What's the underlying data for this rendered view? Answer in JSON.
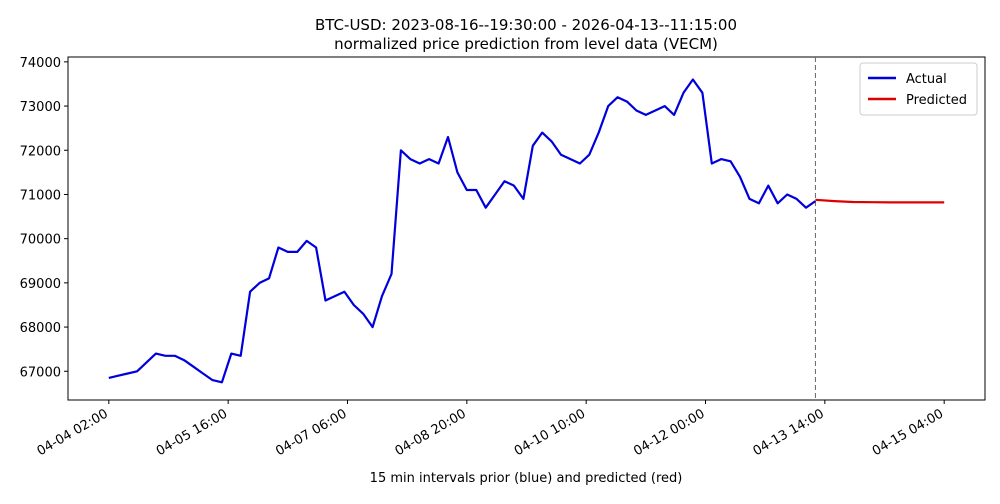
{
  "chart_data": {
    "type": "line",
    "title": "BTC-USD: 2023-08-16--19:30:00 - 2026-04-13--11:15:00",
    "subtitle": "normalized price prediction from level data (VECM)",
    "x_label": "15 min intervals prior (blue) and predicted (red)",
    "xlim": [
      "04-03 13:00",
      "04-15 17:00"
    ],
    "xticks": [
      "04-04 02:00",
      "04-05 16:00",
      "04-07 06:00",
      "04-08 20:00",
      "04-10 10:00",
      "04-12 00:00",
      "04-13 14:00",
      "04-15 04:00"
    ],
    "ylim": [
      66350,
      74110
    ],
    "yticks": [
      67000,
      68000,
      69000,
      70000,
      71000,
      72000,
      73000,
      74000
    ],
    "legend": "upper right",
    "series": [
      {
        "name": "Actual",
        "color": "#0000dd",
        "x": [
          "04-04 02:00",
          "04-04 05:00",
          "04-04 08:00",
          "04-04 11:00",
          "04-04 14:00",
          "04-04 17:00",
          "04-04 20:00",
          "04-04 23:00",
          "04-05 02:00",
          "04-05 05:00",
          "04-05 08:00",
          "04-05 11:00",
          "04-05 14:00",
          "04-05 17:00",
          "04-05 20:00",
          "04-05 23:00",
          "04-06 02:00",
          "04-06 05:00",
          "04-06 08:00",
          "04-06 11:00",
          "04-06 14:00",
          "04-06 17:00",
          "04-06 20:00",
          "04-06 23:00",
          "04-07 02:00",
          "04-07 05:00",
          "04-07 08:00",
          "04-07 11:00",
          "04-07 14:00",
          "04-07 17:00",
          "04-07 20:00",
          "04-07 23:00",
          "04-08 02:00",
          "04-08 05:00",
          "04-08 08:00",
          "04-08 11:00",
          "04-08 14:00",
          "04-08 17:00",
          "04-08 20:00",
          "04-08 23:00",
          "04-09 02:00",
          "04-09 05:00",
          "04-09 08:00",
          "04-09 11:00",
          "04-09 14:00",
          "04-09 17:00",
          "04-09 20:00",
          "04-09 23:00",
          "04-10 02:00",
          "04-10 05:00",
          "04-10 08:00",
          "04-10 11:00",
          "04-10 14:00",
          "04-10 17:00",
          "04-10 20:00",
          "04-10 23:00",
          "04-11 02:00",
          "04-11 05:00",
          "04-11 08:00",
          "04-11 11:00",
          "04-11 14:00",
          "04-11 17:00",
          "04-11 20:00",
          "04-11 23:00",
          "04-12 02:00",
          "04-12 05:00",
          "04-12 08:00",
          "04-12 11:00",
          "04-12 14:00",
          "04-12 17:00",
          "04-12 20:00",
          "04-12 23:00",
          "04-13 02:00",
          "04-13 05:00",
          "04-13 08:00",
          "04-13 11:00"
        ],
        "values": [
          66850,
          66900,
          66950,
          67000,
          67200,
          67400,
          67350,
          67350,
          67250,
          67100,
          66950,
          66800,
          66750,
          67400,
          67350,
          68800,
          69000,
          69100,
          69800,
          69700,
          69700,
          69950,
          69800,
          68600,
          68700,
          68800,
          68500,
          68300,
          68000,
          68700,
          69200,
          72000,
          71800,
          71700,
          71800,
          71700,
          72300,
          71500,
          71100,
          71100,
          70700,
          71000,
          71300,
          71200,
          70900,
          72100,
          72400,
          72200,
          71900,
          71800,
          71700,
          71900,
          72400,
          73000,
          73200,
          73100,
          72900,
          72800,
          72900,
          73000,
          72800,
          73300,
          73600,
          73300,
          71700,
          71800,
          71750,
          71400,
          70900,
          70800,
          71200,
          70800,
          71000,
          70900,
          70700,
          70850
        ]
      },
      {
        "name": "Predicted",
        "color": "#dd0000",
        "x": [
          "04-13 11:00",
          "04-13 17:00",
          "04-13 23:00",
          "04-14 05:00",
          "04-14 11:00",
          "04-14 17:00",
          "04-14 23:00",
          "04-15 04:00"
        ],
        "values": [
          70880,
          70850,
          70830,
          70825,
          70820,
          70820,
          70820,
          70820
        ]
      }
    ]
  }
}
